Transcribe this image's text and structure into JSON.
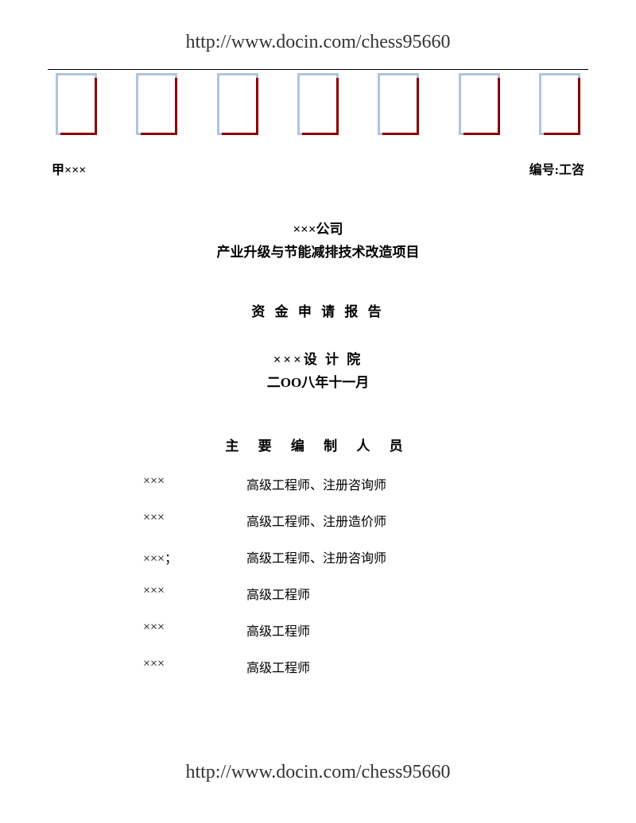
{
  "url": "http://www.docin.com/chess95660",
  "header": {
    "left": "甲×××",
    "right": "编号:工咨"
  },
  "title": {
    "company": "×××公司",
    "project": "产业升级与节能减排技术改造项目",
    "report": "资 金 申 请 报 告",
    "institute": "×××设 计 院",
    "date": "二OO八年十一月"
  },
  "staff": {
    "heading": "主 要 编 制 人 员",
    "items": [
      {
        "name": "×××",
        "role": "高级工程师、注册咨询师"
      },
      {
        "name": "×××",
        "role": "高级工程师、注册造价师"
      },
      {
        "name": "×××；",
        "role": "高级工程师、注册咨询师"
      },
      {
        "name": "×××",
        "role": "高级工程师"
      },
      {
        "name": "×××",
        "role": "高级工程师"
      },
      {
        "name": "×××",
        "role": "高级工程师"
      }
    ]
  },
  "boxes": {
    "count": 7
  },
  "colors": {
    "box_border": "#b0c4de",
    "box_shadow": "#8b0000",
    "text": "#000000",
    "url_text": "#333333"
  }
}
